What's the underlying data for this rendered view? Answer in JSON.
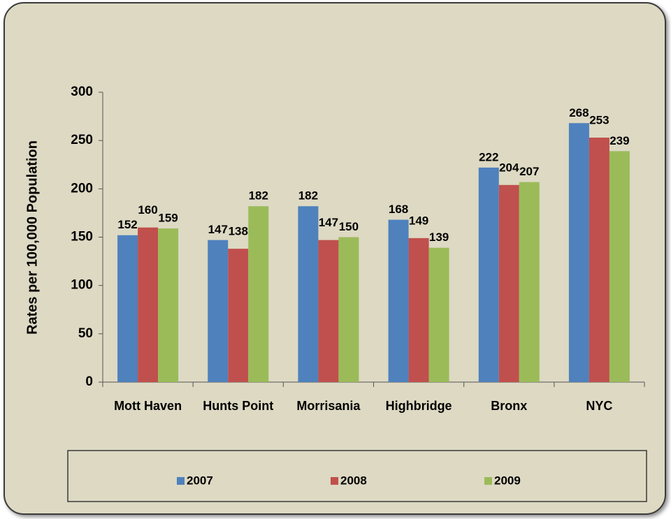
{
  "chart_data": {
    "type": "bar",
    "y_label": "Rates per 100,000 Population",
    "categories": [
      "Mott Haven",
      "Hunts Point",
      "Morrisania",
      "Highbridge",
      "Bronx",
      "NYC"
    ],
    "series": [
      {
        "name": "2007",
        "color": "#4f81bd",
        "values": [
          152,
          147,
          182,
          168,
          222,
          268
        ]
      },
      {
        "name": "2008",
        "color": "#c0504d",
        "values": [
          160,
          138,
          147,
          149,
          204,
          253
        ]
      },
      {
        "name": "2009",
        "color": "#9bbb59",
        "values": [
          159,
          182,
          150,
          139,
          207,
          239
        ]
      }
    ],
    "ylim": [
      0,
      300
    ],
    "yticks": [
      0,
      50,
      100,
      150,
      200,
      250,
      300
    ],
    "grid": false,
    "legend": "bottom"
  }
}
